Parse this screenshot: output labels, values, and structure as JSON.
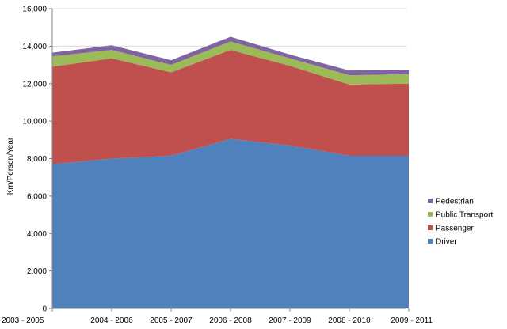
{
  "chart_data": {
    "type": "area",
    "stacked": true,
    "title": "",
    "xlabel": "",
    "ylabel": "Km/Person/Year",
    "ylim": [
      0,
      16000
    ],
    "y_ticks": [
      0,
      2000,
      4000,
      6000,
      8000,
      10000,
      12000,
      14000,
      16000
    ],
    "y_tick_labels": [
      "0",
      "2,000",
      "4,000",
      "6,000",
      "8,000",
      "10,000",
      "12,000",
      "14,000",
      "16,000"
    ],
    "grid": true,
    "legend_position": "right",
    "categories": [
      "2003 - 2005",
      "2004 - 2006",
      "2005 - 2007",
      "2006 - 2008",
      "2007 - 2009",
      "2008 - 2010",
      "2009 - 2011"
    ],
    "series": [
      {
        "name": "Driver",
        "color": "#4F81BD",
        "values": [
          7700,
          8000,
          8150,
          9050,
          8700,
          8150,
          8150
        ]
      },
      {
        "name": "Passenger",
        "color": "#C0504D",
        "values": [
          5200,
          5350,
          4450,
          4750,
          4250,
          3800,
          3850
        ]
      },
      {
        "name": "Public Transport",
        "color": "#9BBB59",
        "values": [
          550,
          450,
          400,
          450,
          400,
          500,
          500
        ]
      },
      {
        "name": "Pedestrian",
        "color": "#8064A2",
        "values": [
          200,
          250,
          250,
          250,
          200,
          250,
          250
        ]
      }
    ],
    "legend_order": [
      "Pedestrian",
      "Public Transport",
      "Passenger",
      "Driver"
    ]
  }
}
